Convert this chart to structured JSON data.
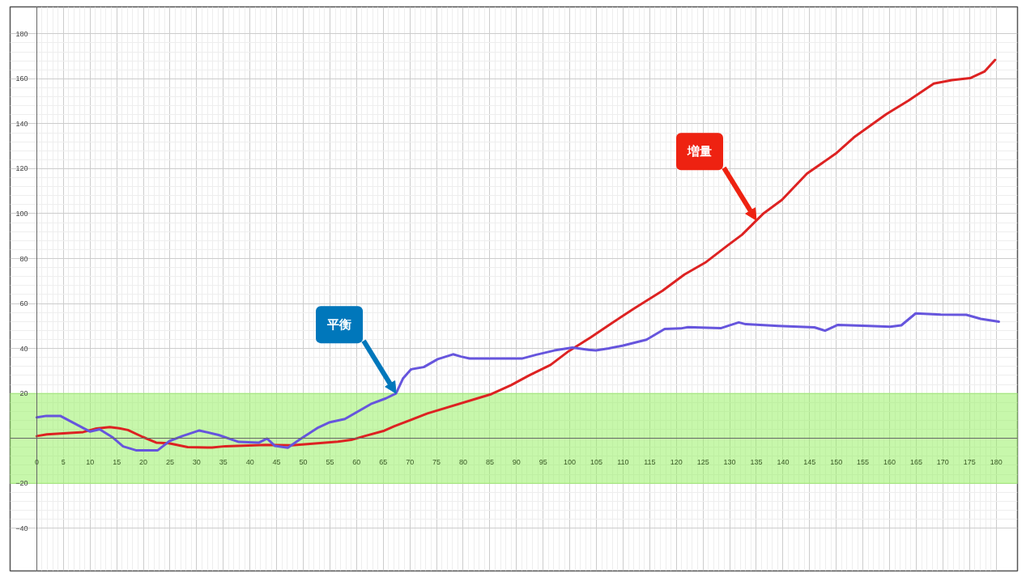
{
  "chart_data": {
    "type": "line",
    "x": [
      0,
      1.9,
      5.6,
      8.7,
      11.2,
      13.7,
      15.5,
      17.1,
      19.9,
      22.4,
      24.8,
      28.3,
      32.9,
      35.4,
      42.9,
      47.8,
      50.3,
      56.5,
      59,
      61.5,
      65.2,
      67.1,
      73.3,
      85.3,
      89,
      92.3,
      96.4,
      99.8,
      103.9,
      107.9,
      112,
      117.4,
      121.5,
      125.6,
      129.6,
      132.3,
      136.4,
      139.8,
      144.5,
      149.9,
      153.3,
      159.4,
      163.5,
      168.3,
      171.7,
      175.1,
      177.8,
      179.8
    ],
    "series": [
      {
        "color": "#dd2222",
        "values": [
          1,
          1.8,
          2.3,
          2.8,
          4.4,
          5,
          4.5,
          3.7,
          0.6,
          -1.9,
          -2.2,
          -3.9,
          -4.1,
          -3.5,
          -2.9,
          -3.1,
          -2.6,
          -1.5,
          -0.7,
          1,
          3.4,
          5.4,
          11.1,
          19.7,
          23.7,
          27.9,
          32.7,
          38.8,
          44.9,
          51.3,
          57.7,
          65.7,
          72.9,
          78.5,
          85.8,
          90.6,
          100.2,
          106.1,
          117.8,
          126.7,
          133.9,
          144.3,
          150.2,
          157.9,
          159.4,
          160.3,
          163.2,
          168.4
        ]
      },
      {
        "color": "#6655dd",
        "x": [
          0,
          1.8,
          4.4,
          10,
          11.8,
          14.3,
          16.2,
          18.6,
          22.7,
          24.9,
          27.3,
          30.5,
          34.1,
          37.9,
          41.7,
          43.2,
          44.7,
          47.1,
          49.4,
          52.8,
          55,
          57.8,
          62.7,
          65.5,
          67.4,
          68.7,
          70.2,
          72.6,
          75.2,
          78.1,
          79.6,
          81.2,
          91,
          93.7,
          97.1,
          100.5,
          103.5,
          104.9,
          107.3,
          110,
          114.4,
          117.8,
          120.8,
          122.2,
          128.3,
          131.7,
          133,
          139.1,
          145.9,
          147.9,
          150.3,
          156.1,
          160.1,
          162.2,
          164.9,
          169.6,
          174.4,
          177.1,
          180.5
        ],
        "values": [
          9.3,
          10,
          10,
          3,
          4,
          0.3,
          -3.6,
          -5.3,
          -5.3,
          -1.2,
          1,
          3.5,
          1.5,
          -1.6,
          -1.9,
          -0.1,
          -3.4,
          -4.2,
          -0.4,
          4.8,
          7.2,
          8.6,
          15.3,
          17.8,
          20,
          26.6,
          30.7,
          31.7,
          35.2,
          37.4,
          36.4,
          35.5,
          35.5,
          37.2,
          39.1,
          40.4,
          39.4,
          39.1,
          40,
          41.3,
          43.9,
          48.7,
          48.9,
          49.5,
          49,
          51.6,
          50.8,
          50,
          49.4,
          47.9,
          50.5,
          50,
          49.7,
          50.3,
          55.6,
          55.1,
          55,
          53.2,
          51.9
        ]
      }
    ],
    "annotations": [
      {
        "text": "増量",
        "x": 135,
        "y": 97
      },
      {
        "text": "平衡",
        "x": 67.4,
        "y": 20
      }
    ],
    "bands": [
      {
        "axis": "y",
        "from": -20,
        "to": 20,
        "color": "#99f066"
      }
    ],
    "xlim": [
      -5,
      184
    ],
    "ylim": [
      -59,
      192
    ],
    "xticks": [
      0,
      5,
      10,
      15,
      20,
      25,
      30,
      35,
      40,
      45,
      50,
      55,
      60,
      65,
      70,
      75,
      80,
      85,
      90,
      95,
      100,
      105,
      110,
      115,
      120,
      125,
      130,
      135,
      140,
      145,
      150,
      155,
      160,
      165,
      170,
      175,
      180
    ],
    "yticks": [
      -40,
      -20,
      20,
      40,
      60,
      80,
      100,
      120,
      140,
      160,
      180
    ],
    "grid": true,
    "marker": "none",
    "line_style": "solid"
  }
}
